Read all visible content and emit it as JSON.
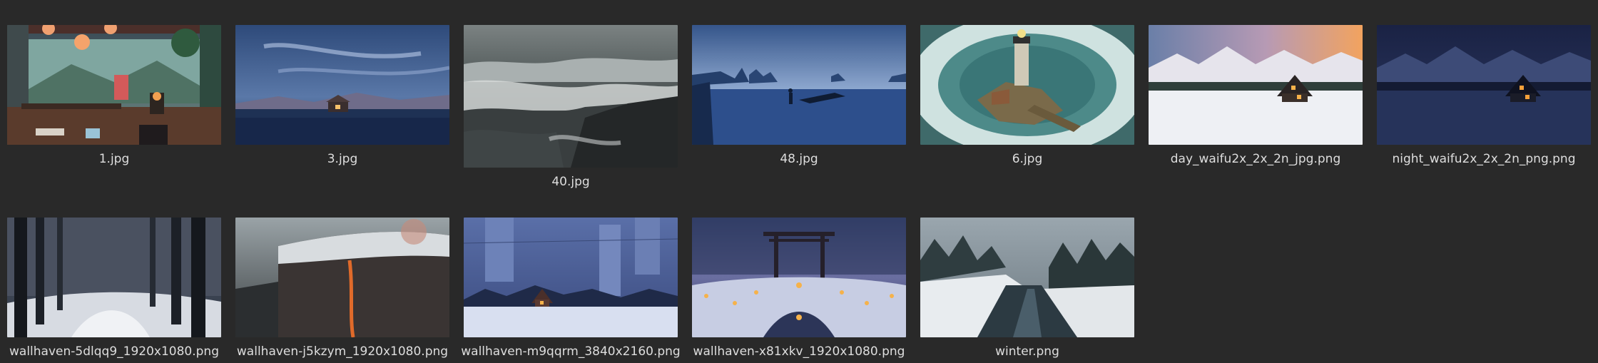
{
  "files": [
    {
      "name": "1.jpg",
      "thumb": "lofi-room-thumbnail"
    },
    {
      "name": "3.jpg",
      "thumb": "cabin-by-lake-thumbnail"
    },
    {
      "name": "40.jpg",
      "thumb": "stormy-sea-thumbnail"
    },
    {
      "name": "48.jpg",
      "thumb": "blue-coast-silhouette-thumbnail"
    },
    {
      "name": "6.jpg",
      "thumb": "lighthouse-island-thumbnail"
    },
    {
      "name": "day_waifu2x_2x_2n_jpg.png",
      "thumb": "snowy-cabin-day-thumbnail"
    },
    {
      "name": "night_waifu2x_2x_2n_png.png",
      "thumb": "snowy-cabin-night-thumbnail"
    },
    {
      "name": "wallhaven-5dlqq9_1920x1080.png",
      "thumb": "snowy-forest-path-thumbnail"
    },
    {
      "name": "wallhaven-j5kzym_1920x1080.png",
      "thumb": "lava-cliff-thumbnail"
    },
    {
      "name": "wallhaven-m9qqrm_3840x2160.png",
      "thumb": "snowy-city-cabin-thumbnail"
    },
    {
      "name": "wallhaven-x81xkv_1920x1080.png",
      "thumb": "torii-lanterns-thumbnail"
    },
    {
      "name": "winter.png",
      "thumb": "winter-river-thumbnail"
    }
  ]
}
